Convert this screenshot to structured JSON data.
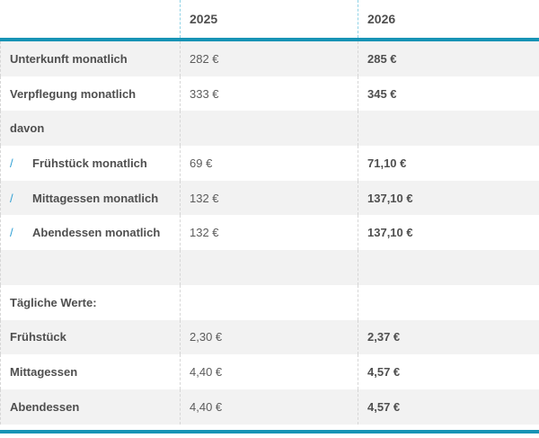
{
  "accent": {
    "teal_rule": "#1793b5",
    "slash_blue": "#2e9fd4",
    "row_gray": "#f2f2f2",
    "header_separator_blue": "#8fd2e6",
    "body_separator_gray": "#d6d6d6"
  },
  "icons": {
    "slash": "/"
  },
  "chart_data": {
    "type": "table",
    "title": "",
    "columns": [
      "",
      "2025",
      "2026"
    ],
    "rows": [
      {
        "label": "Unterkunft monatlich",
        "v2025": "282 €",
        "v2026": "285 €",
        "indent": false
      },
      {
        "label": "Verpflegung monatlich",
        "v2025": "333 €",
        "v2026": "345 €",
        "indent": false
      },
      {
        "label": "davon",
        "v2025": "",
        "v2026": "",
        "indent": false
      },
      {
        "label": "Frühstück monatlich",
        "v2025": "69 €",
        "v2026": "71,10 €",
        "indent": true
      },
      {
        "label": "Mittagessen monatlich",
        "v2025": "132 €",
        "v2026": "137,10 €",
        "indent": true
      },
      {
        "label": "Abendessen monatlich",
        "v2025": "132 €",
        "v2026": "137,10 €",
        "indent": true
      },
      {
        "label": "",
        "v2025": "",
        "v2026": "",
        "indent": false
      },
      {
        "label": "Tägliche Werte:",
        "v2025": "",
        "v2026": "",
        "indent": false
      },
      {
        "label": "Frühstück",
        "v2025": "2,30 €",
        "v2026": "2,37 €",
        "indent": false
      },
      {
        "label": "Mittagessen",
        "v2025": "4,40 €",
        "v2026": "4,57 €",
        "indent": false
      },
      {
        "label": "Abendessen",
        "v2025": "4,40 €",
        "v2026": "4,57 €",
        "indent": false
      }
    ]
  }
}
